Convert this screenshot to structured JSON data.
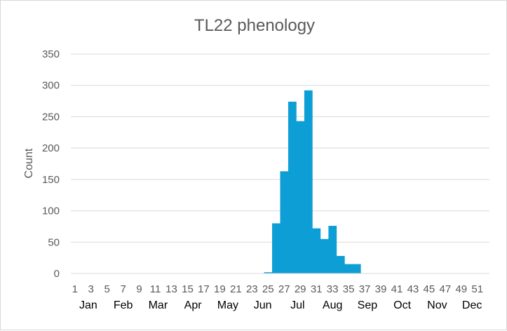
{
  "chart_data": {
    "type": "bar",
    "title": "TL22 phenology",
    "xlabel": "",
    "ylabel": "Count",
    "ylim": [
      0,
      350
    ],
    "y_ticks": [
      0,
      50,
      100,
      150,
      200,
      250,
      300,
      350
    ],
    "grid": true,
    "legend": "none",
    "bar_color": "#0E9ED6",
    "categories": [
      1,
      2,
      3,
      4,
      5,
      6,
      7,
      8,
      9,
      10,
      11,
      12,
      13,
      14,
      15,
      16,
      17,
      18,
      19,
      20,
      21,
      22,
      23,
      24,
      25,
      26,
      27,
      28,
      29,
      30,
      31,
      32,
      33,
      34,
      35,
      36,
      37,
      38,
      39,
      40,
      41,
      42,
      43,
      44,
      45,
      46,
      47,
      48,
      49,
      50,
      51,
      52
    ],
    "x_tick_labels": [
      "1",
      "3",
      "5",
      "7",
      "9",
      "11",
      "13",
      "15",
      "17",
      "19",
      "21",
      "23",
      "25",
      "27",
      "29",
      "31",
      "33",
      "35",
      "37",
      "39",
      "41",
      "43",
      "45",
      "47",
      "49",
      "51"
    ],
    "month_labels": [
      "Jan",
      "Feb",
      "Mar",
      "Apr",
      "May",
      "Jun",
      "Jul",
      "Aug",
      "Sep",
      "Oct",
      "Nov",
      "Dec"
    ],
    "values": [
      0,
      0,
      0,
      0,
      0,
      0,
      0,
      0,
      0,
      0,
      0,
      0,
      0,
      0,
      0,
      0,
      0,
      0,
      0,
      0,
      0,
      0,
      0,
      0,
      2,
      80,
      163,
      274,
      243,
      292,
      72,
      55,
      76,
      28,
      15,
      15,
      0,
      0,
      0,
      0,
      0,
      0,
      0,
      0,
      0,
      0,
      0,
      0,
      0,
      0,
      0,
      0
    ]
  }
}
